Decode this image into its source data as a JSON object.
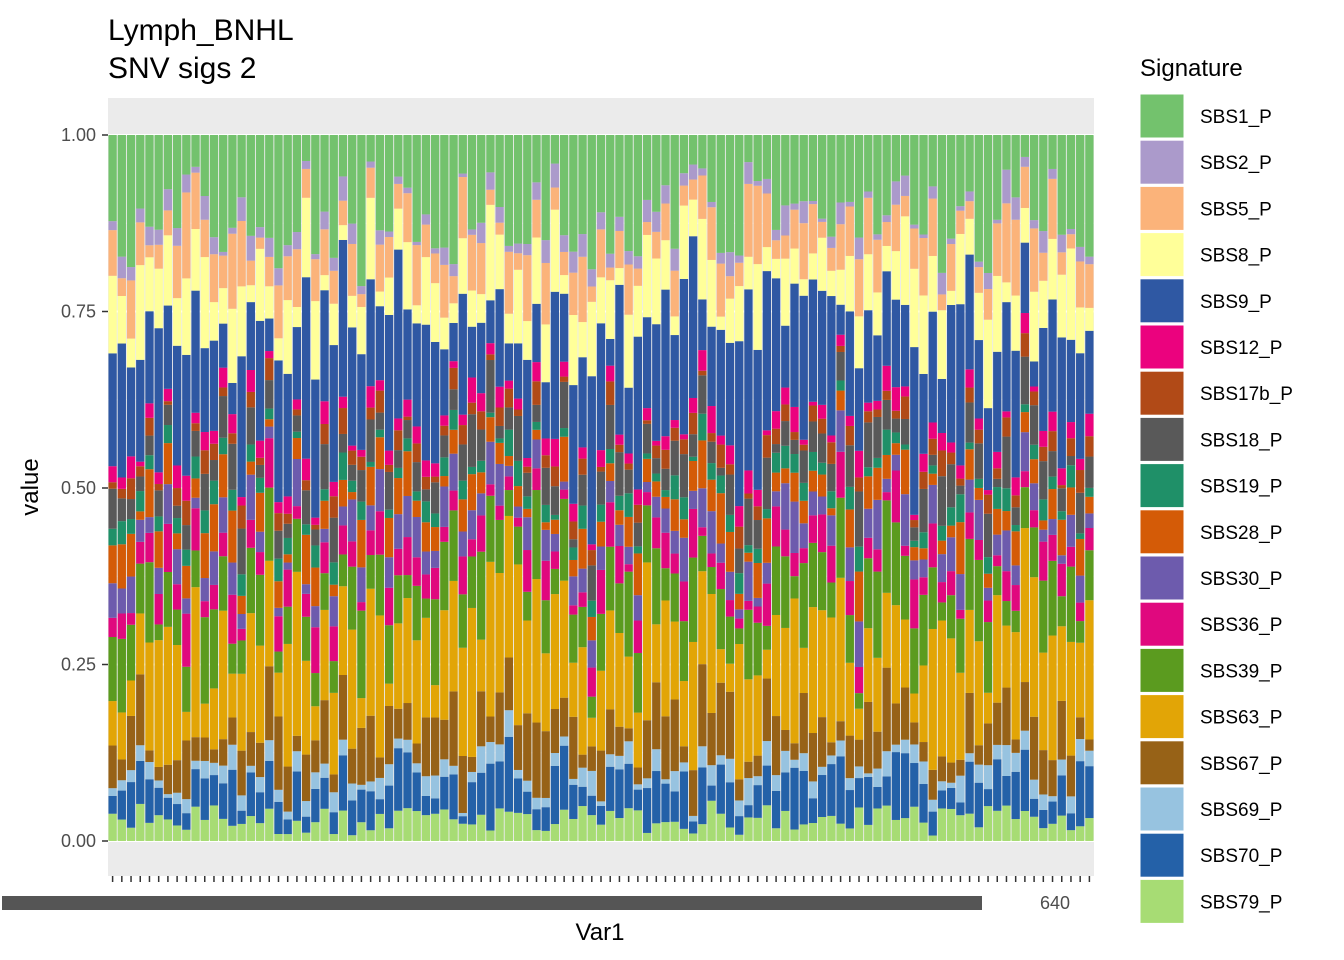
{
  "chart_data": {
    "type": "bar",
    "stacked": true,
    "normalized": true,
    "title": "Lymph_BNHL",
    "subtitle": "SNV sigs 2",
    "xlabel": "Var1",
    "ylabel": "value",
    "ylim": [
      0,
      1
    ],
    "yticks": [
      "0.00",
      "0.25",
      "0.50",
      "0.75",
      "1.00"
    ],
    "n_samples": 107,
    "xtick_labels_visible": "overlapping, illegible; trailing fragment reads 640",
    "grid": "on (grey panel lines)",
    "legend": {
      "title": "Signature",
      "position": "right",
      "entries": [
        {
          "name": "SBS1_P",
          "color": "#73c26d"
        },
        {
          "name": "SBS2_P",
          "color": "#ab9acb"
        },
        {
          "name": "SBS5_P",
          "color": "#fbb37a"
        },
        {
          "name": "SBS8_P",
          "color": "#ffff99"
        },
        {
          "name": "SBS9_P",
          "color": "#2f58a3"
        },
        {
          "name": "SBS12_P",
          "color": "#eb027e"
        },
        {
          "name": "SBS17b_P",
          "color": "#b14a17"
        },
        {
          "name": "SBS18_P",
          "color": "#595959"
        },
        {
          "name": "SBS19_P",
          "color": "#1f9068"
        },
        {
          "name": "SBS28_P",
          "color": "#d45b07"
        },
        {
          "name": "SBS30_P",
          "color": "#6d5bad"
        },
        {
          "name": "SBS36_P",
          "color": "#e0087e"
        },
        {
          "name": "SBS39_P",
          "color": "#5b9b1f"
        },
        {
          "name": "SBS63_P",
          "color": "#e2a506"
        },
        {
          "name": "SBS67_P",
          "color": "#976217"
        },
        {
          "name": "SBS69_P",
          "color": "#97c3e0"
        },
        {
          "name": "SBS70_P",
          "color": "#2461a8"
        },
        {
          "name": "SBS79_P",
          "color": "#a7dc74"
        }
      ]
    },
    "series_order_top_to_bottom": [
      "SBS1_P",
      "SBS2_P",
      "SBS5_P",
      "SBS8_P",
      "SBS9_P",
      "SBS12_P",
      "SBS17b_P",
      "SBS18_P",
      "SBS19_P",
      "SBS28_P",
      "SBS30_P",
      "SBS36_P",
      "SBS39_P",
      "SBS63_P",
      "SBS67_P",
      "SBS69_P",
      "SBS70_P",
      "SBS79_P"
    ],
    "mean_proportions": {
      "SBS1_P": 0.11,
      "SBS2_P": 0.02,
      "SBS5_P": 0.06,
      "SBS8_P": 0.07,
      "SBS9_P": 0.14,
      "SBS12_P": 0.02,
      "SBS17b_P": 0.02,
      "SBS18_P": 0.04,
      "SBS19_P": 0.02,
      "SBS28_P": 0.04,
      "SBS30_P": 0.04,
      "SBS36_P": 0.04,
      "SBS39_P": 0.07,
      "SBS63_P": 0.13,
      "SBS67_P": 0.06,
      "SBS69_P": 0.02,
      "SBS70_P": 0.05,
      "SBS79_P": 0.03
    }
  }
}
